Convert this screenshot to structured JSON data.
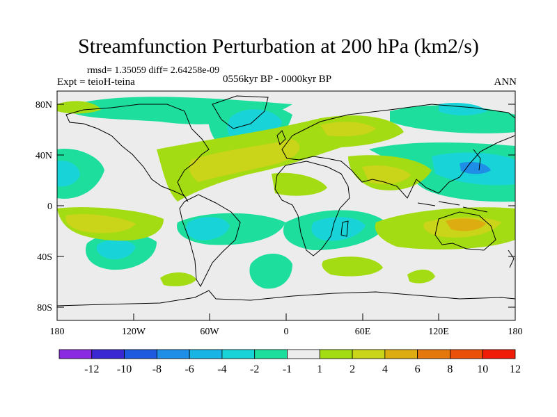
{
  "title": "Streamfunction Perturbation at 200 hPa (km2/s)",
  "stats": "rmsd= 1.35059  diff= 2.64258e-09",
  "experiment": "Expt = teioH-teina",
  "period": "0556kyr BP - 0000kyr BP",
  "season": "ANN",
  "lat_labels": [
    "80N",
    "40N",
    "0",
    "40S",
    "80S"
  ],
  "lon_labels": [
    "180",
    "120W",
    "60W",
    "0",
    "60E",
    "120E",
    "180"
  ],
  "colorbar": {
    "labels": [
      "-12",
      "-10",
      "-8",
      "-6",
      "-4",
      "-2",
      "-1",
      "1",
      "2",
      "4",
      "6",
      "8",
      "10",
      "12"
    ],
    "colors": [
      "#8a2be2",
      "#3a28d2",
      "#1e5ae0",
      "#1e8ee6",
      "#18b4e6",
      "#18d4d8",
      "#1ede9e",
      "#ececec",
      "#a4dc14",
      "#cad418",
      "#dcac10",
      "#e4780c",
      "#ea500a",
      "#f01c08"
    ]
  }
}
